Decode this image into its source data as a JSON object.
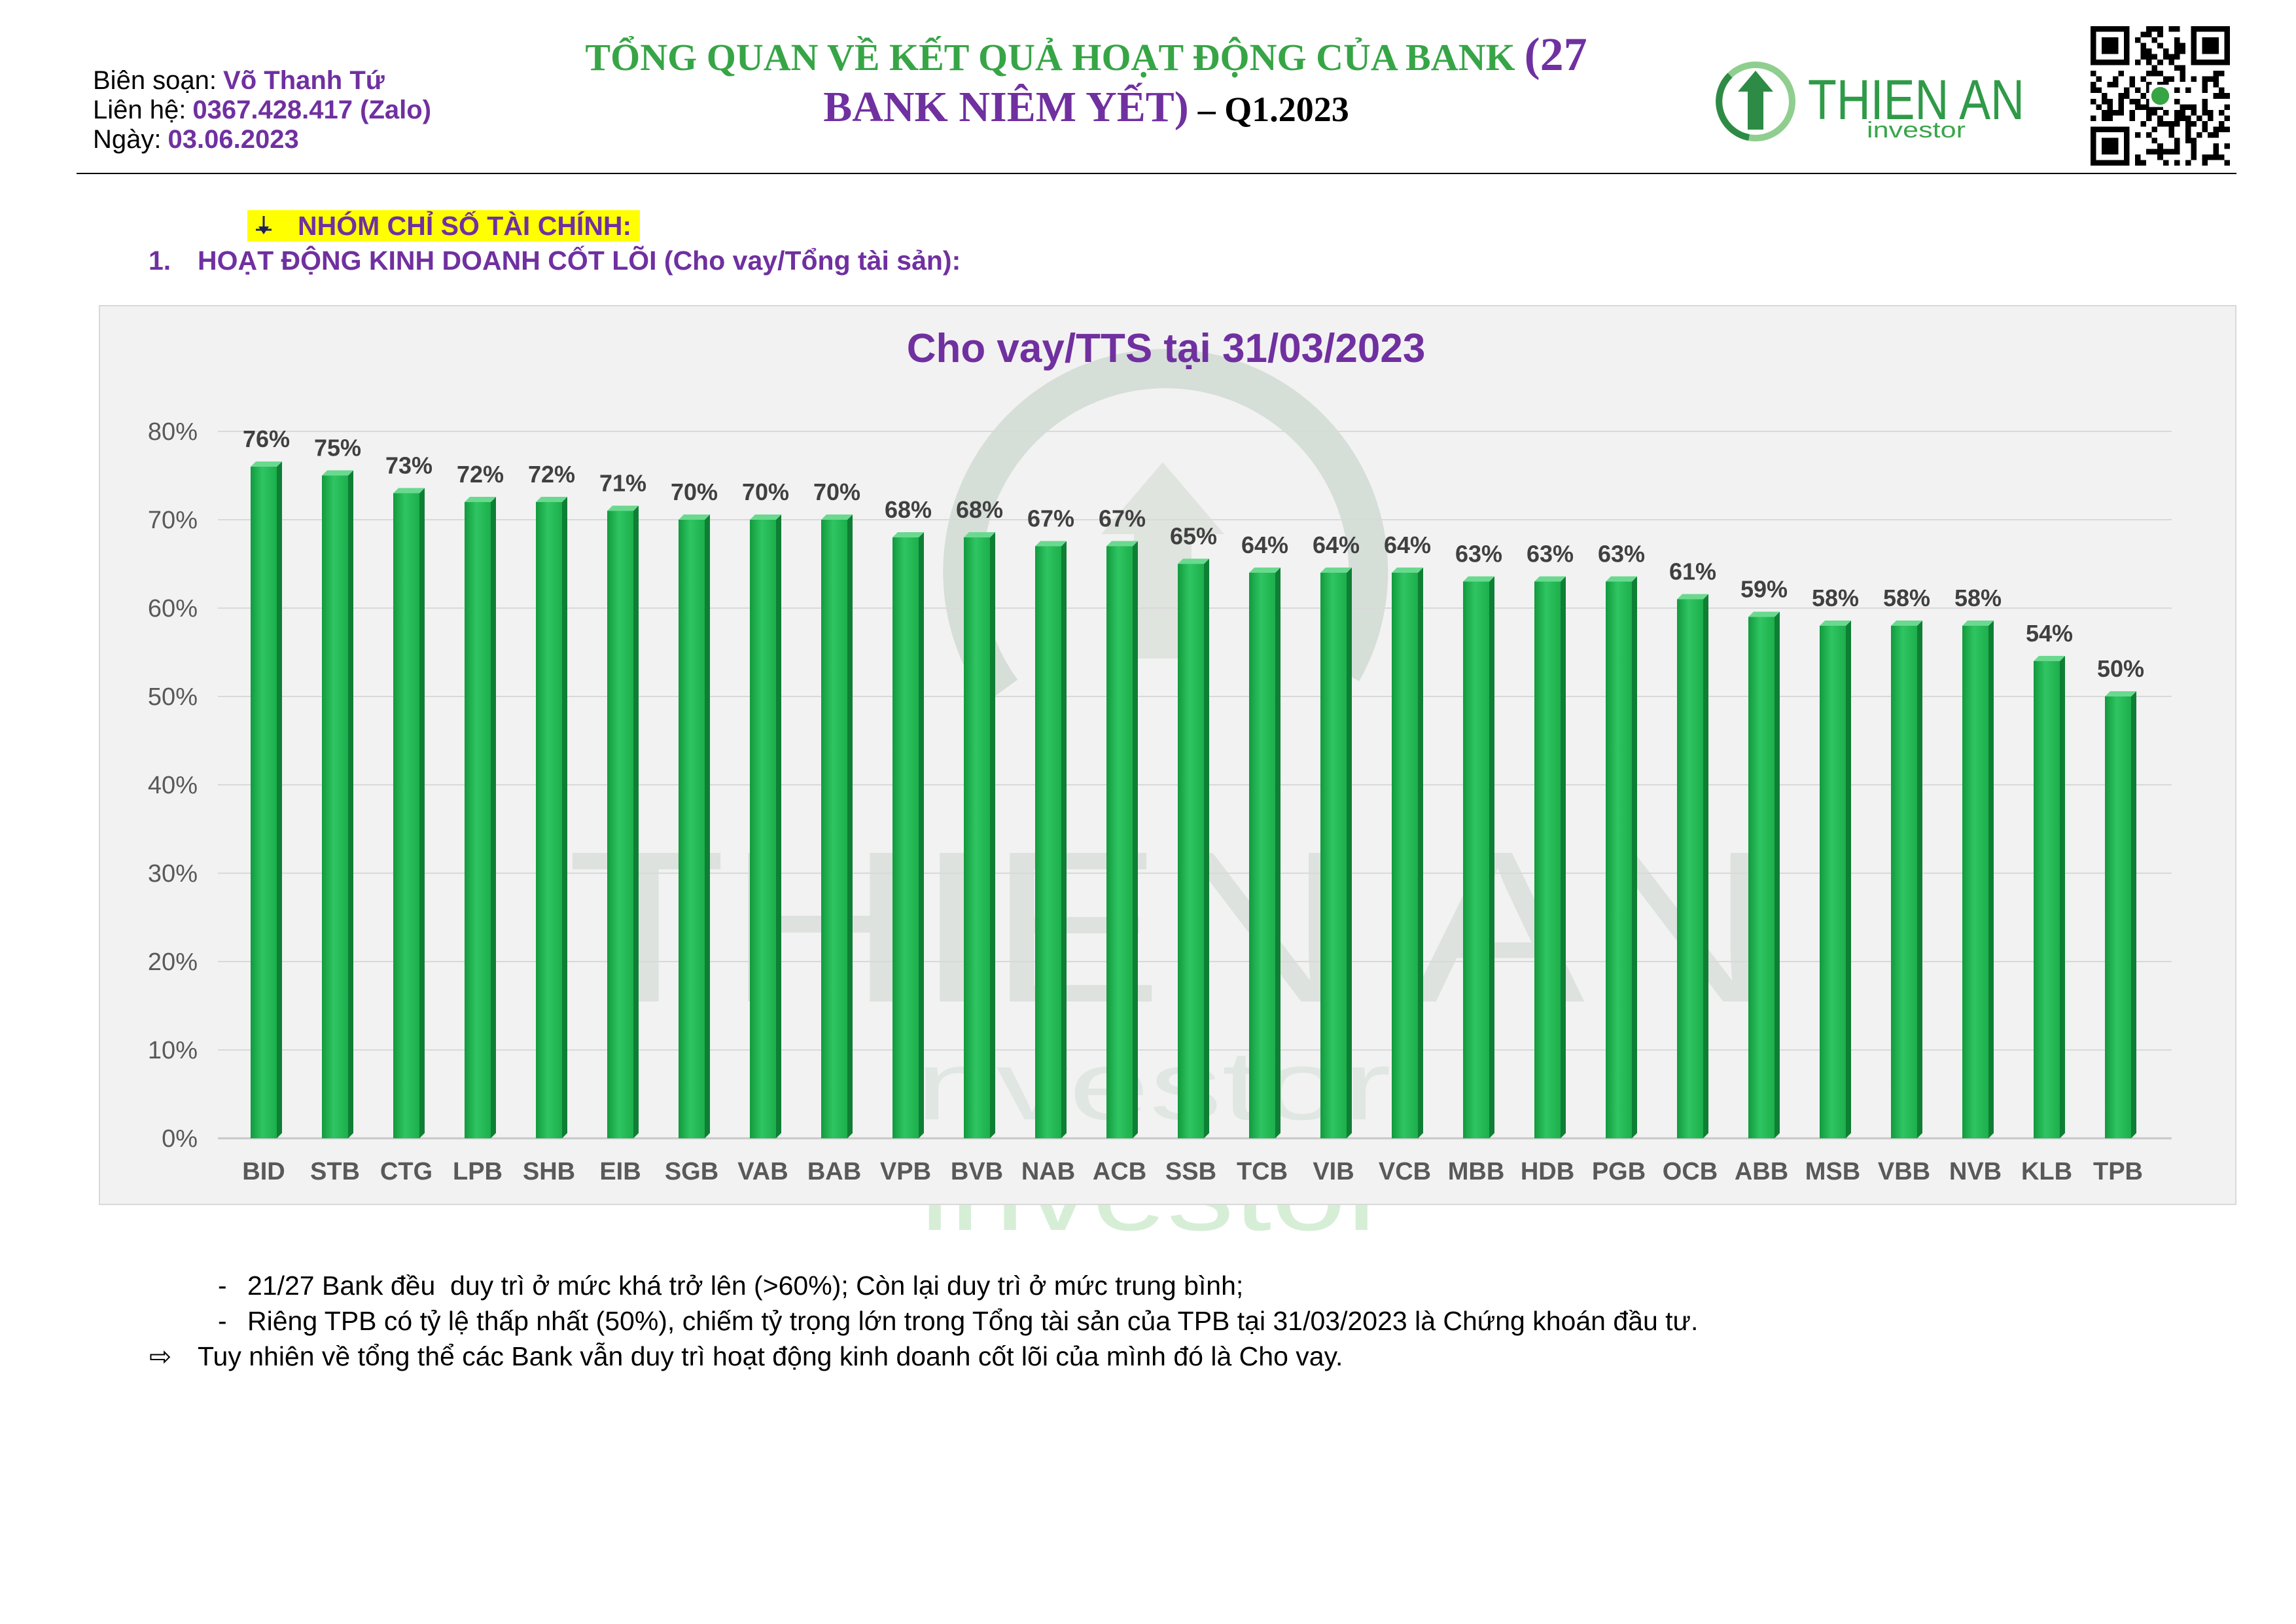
{
  "header": {
    "author_label": "Biên soạn:",
    "author_name": "Võ Thanh Tứ",
    "contact_label": "Liên hệ:",
    "contact_value": "0367.428.417 (Zalo)",
    "date_label": "Ngày:",
    "date_value": "03.06.2023",
    "title_line1": "TỔNG QUAN VỀ KẾT QUẢ HOẠT ĐỘNG CỦA BANK",
    "title_line1_accent": "(27",
    "title_line2_accent": "BANK NIÊM YẾT)",
    "title_line2_suffix": "– Q1.2023"
  },
  "logo": {
    "name": "THIEN AN",
    "tagline": "investor"
  },
  "section": {
    "heading": "NHÓM CHỈ SỐ TÀI CHÍNH:",
    "item_number": "1.",
    "item_title": "HOẠT ĐỘNG KINH DOANH CỐT LÕI (Cho vay/Tổng tài sản):"
  },
  "chart_data": {
    "type": "bar",
    "title": "Cho vay/TTS tại 31/03/2023",
    "xlabel": "",
    "ylabel": "",
    "unit": "%",
    "categories": [
      "BID",
      "STB",
      "CTG",
      "LPB",
      "SHB",
      "EIB",
      "SGB",
      "VAB",
      "BAB",
      "VPB",
      "BVB",
      "NAB",
      "ACB",
      "SSB",
      "TCB",
      "VIB",
      "VCB",
      "MBB",
      "HDB",
      "PGB",
      "OCB",
      "ABB",
      "MSB",
      "VBB",
      "NVB",
      "KLB",
      "TPB"
    ],
    "values": [
      76,
      75,
      73,
      72,
      72,
      71,
      70,
      70,
      70,
      68,
      68,
      67,
      67,
      65,
      64,
      64,
      64,
      63,
      63,
      63,
      61,
      59,
      58,
      58,
      58,
      54,
      50
    ],
    "ylim": [
      0,
      80
    ],
    "yticks": [
      0,
      10,
      20,
      30,
      40,
      50,
      60,
      70,
      80
    ],
    "grid": true
  },
  "notes": [
    {
      "marker": "-",
      "text": "21/27 Bank đều  duy trì ở mức khá trở lên (>60%); Còn lại duy trì ở mức trung bình;"
    },
    {
      "marker": "-",
      "text": "Riêng TPB có tỷ lệ thấp nhất (50%), chiếm tỷ trọng lớn trong Tổng tài sản của TPB tại 31/03/2023 là Chứng khoán đầu tư."
    },
    {
      "marker": "⇨",
      "text": "Tuy nhiên về tổng thể các Bank vẫn duy trì hoạt động kinh doanh cốt lõi của mình đó là Cho vay."
    }
  ],
  "watermark": {
    "name": "THIEN AN",
    "tagline": "investor"
  },
  "colors": {
    "purple": "#7030a0",
    "title_green": "#37a546",
    "highlight": "#ffff00",
    "bar_front": "#1fb24e",
    "bar_side": "#0e7f34",
    "bar_top": "#6ad98f",
    "axis_text": "#595959",
    "chart_bg": "#f2f2f2"
  },
  "icons": {
    "section_marker": "down-arrow-icon",
    "logo": "thien-an-logo-icon",
    "qr": "qr-code-icon"
  }
}
